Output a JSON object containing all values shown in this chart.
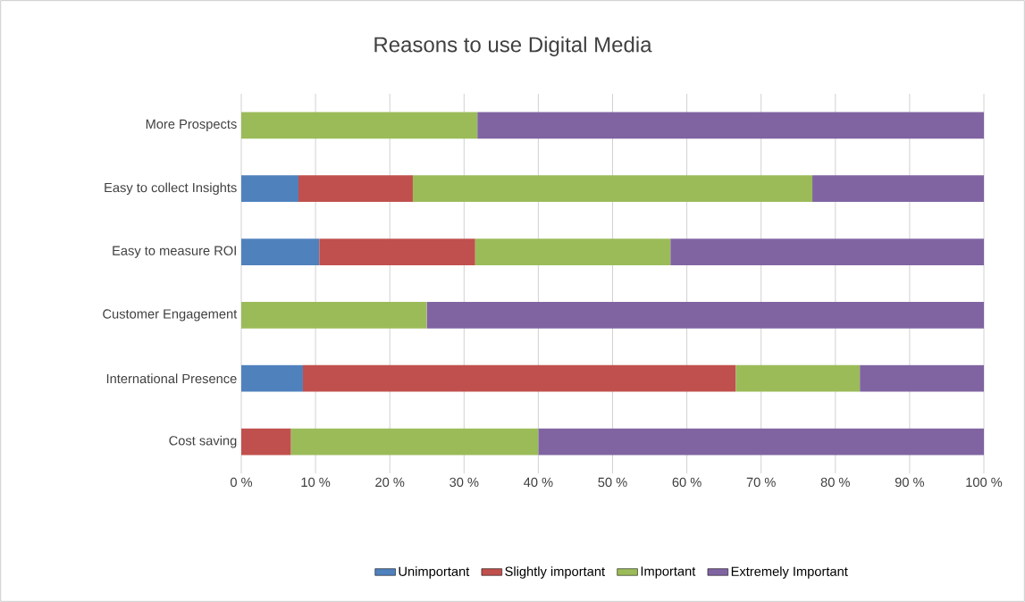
{
  "chart_data": {
    "type": "bar",
    "orientation": "horizontal",
    "stacked": true,
    "title": "Reasons to use Digital Media",
    "categories": [
      "More Prospects",
      "Easy to collect Insights",
      "Easy to measure ROI",
      "Customer Engagement",
      "International Presence",
      "Cost saving"
    ],
    "series": [
      {
        "name": "Unimportant",
        "color": "#4f81bd",
        "values": [
          0,
          7.7,
          10.5,
          0,
          8.3,
          0
        ]
      },
      {
        "name": "Slightly important",
        "color": "#c0504d",
        "values": [
          0,
          15.4,
          21.0,
          0,
          58.3,
          6.7
        ]
      },
      {
        "name": "Important",
        "color": "#9bbb59",
        "values": [
          31.8,
          53.8,
          26.3,
          25.0,
          16.7,
          33.3
        ]
      },
      {
        "name": "Extremely Important",
        "color": "#8064a2",
        "values": [
          68.2,
          23.1,
          42.2,
          75.0,
          16.7,
          60.0
        ]
      }
    ],
    "xlim": [
      0,
      100
    ],
    "xticks": [
      {
        "value": 0,
        "label": "0 %"
      },
      {
        "value": 10,
        "label": "10 %"
      },
      {
        "value": 20,
        "label": "20 %"
      },
      {
        "value": 30,
        "label": "30 %"
      },
      {
        "value": 40,
        "label": "40 %"
      },
      {
        "value": 50,
        "label": "50 %"
      },
      {
        "value": 60,
        "label": "60 %"
      },
      {
        "value": 70,
        "label": "70 %"
      },
      {
        "value": 80,
        "label": "80 %"
      },
      {
        "value": 90,
        "label": "90 %"
      },
      {
        "value": 100,
        "label": "100 %"
      }
    ],
    "grid": "x",
    "legend": "bottom"
  }
}
